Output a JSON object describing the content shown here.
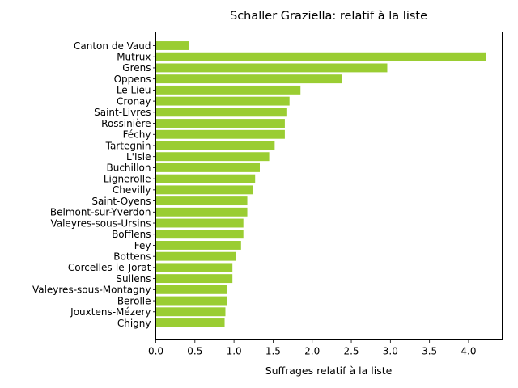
{
  "chart_data": {
    "type": "bar",
    "orientation": "horizontal",
    "title": "Schaller Graziella: relatif à la liste",
    "xlabel": "Suffrages relatif à la liste",
    "ylabel": "",
    "xlim": [
      0,
      4.43
    ],
    "xticks": [
      "0.0",
      "0.5",
      "1.0",
      "1.5",
      "2.0",
      "2.5",
      "3.0",
      "3.5",
      "4.0"
    ],
    "grid": false,
    "bar_color": "#9acd32",
    "categories": [
      "Canton de Vaud",
      "Mutrux",
      "Grens",
      "Oppens",
      "Le Lieu",
      "Cronay",
      "Saint-Livres",
      "Rossinière",
      "Féchy",
      "Tartegnin",
      "L'Isle",
      "Buchillon",
      "Lignerolle",
      "Chevilly",
      "Saint-Oyens",
      "Belmont-sur-Yverdon",
      "Valeyres-sous-Ursins",
      "Bofflens",
      "Fey",
      "Bottens",
      "Corcelles-le-Jorat",
      "Sullens",
      "Valeyres-sous-Montagny",
      "Berolle",
      "Jouxtens-Mézery",
      "Chigny"
    ],
    "values": [
      0.42,
      4.22,
      2.96,
      2.38,
      1.85,
      1.71,
      1.67,
      1.65,
      1.65,
      1.52,
      1.45,
      1.33,
      1.27,
      1.24,
      1.17,
      1.17,
      1.12,
      1.12,
      1.09,
      1.02,
      0.98,
      0.98,
      0.91,
      0.91,
      0.89,
      0.88
    ]
  }
}
